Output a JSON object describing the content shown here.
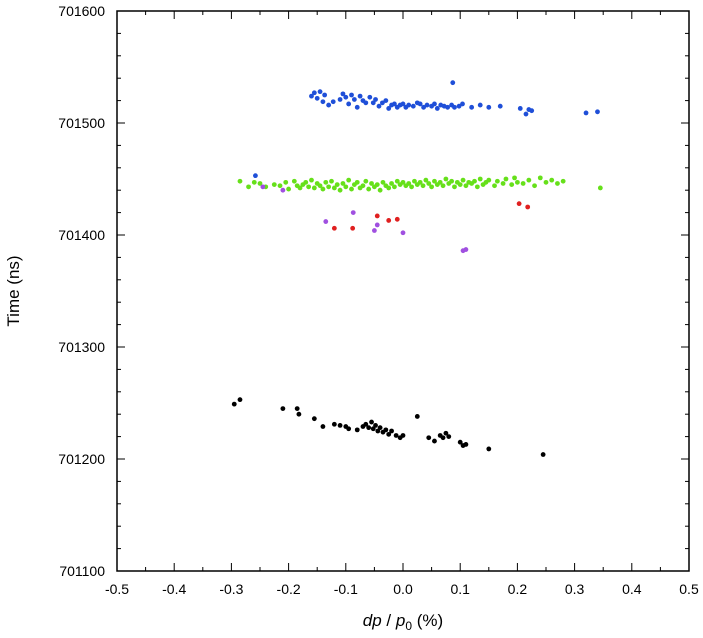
{
  "chart_data": {
    "type": "scatter",
    "xlabel": {
      "dp": "dp",
      "sep": " / ",
      "p": "p",
      "sub": "0",
      "unit": " (%)"
    },
    "ylabel": "Time (ns)",
    "xlim": [
      -0.5,
      0.5
    ],
    "ylim": [
      701100,
      701600
    ],
    "x_ticks": [
      -0.5,
      -0.4,
      -0.3,
      -0.2,
      -0.1,
      0.0,
      0.1,
      0.2,
      0.3,
      0.4,
      0.5
    ],
    "x_tick_labels": [
      "-0.5",
      "-0.4",
      "-0.3",
      "-0.2",
      "-0.1",
      "0.0",
      "0.1",
      "0.2",
      "0.3",
      "0.4",
      "0.5"
    ],
    "y_ticks": [
      701100,
      701200,
      701300,
      701400,
      701500,
      701600
    ],
    "y_tick_labels": [
      "701100",
      "701200",
      "701300",
      "701400",
      "701500",
      "701600"
    ],
    "grid": false,
    "series": [
      {
        "color": "#1f4fd8",
        "points": [
          [
            -0.16,
            701524
          ],
          [
            -0.155,
            701527
          ],
          [
            -0.15,
            701522
          ],
          [
            -0.145,
            701528
          ],
          [
            -0.14,
            701519
          ],
          [
            -0.137,
            701525
          ],
          [
            -0.13,
            701516
          ],
          [
            -0.122,
            701519
          ],
          [
            -0.11,
            701521
          ],
          [
            -0.105,
            701526
          ],
          [
            -0.1,
            701523
          ],
          [
            -0.095,
            701517
          ],
          [
            -0.09,
            701525
          ],
          [
            -0.085,
            701521
          ],
          [
            -0.08,
            701514
          ],
          [
            -0.075,
            701524
          ],
          [
            -0.07,
            701520
          ],
          [
            -0.065,
            701518
          ],
          [
            -0.058,
            701523
          ],
          [
            -0.052,
            701518
          ],
          [
            -0.048,
            701521
          ],
          [
            -0.042,
            701515
          ],
          [
            -0.036,
            701518
          ],
          [
            -0.03,
            701520
          ],
          [
            -0.025,
            701513
          ],
          [
            -0.02,
            701516
          ],
          [
            -0.015,
            701517
          ],
          [
            -0.01,
            701514
          ],
          [
            -0.005,
            701516
          ],
          [
            0.0,
            701517
          ],
          [
            0.005,
            701514
          ],
          [
            0.01,
            701516
          ],
          [
            0.018,
            701515
          ],
          [
            0.025,
            701518
          ],
          [
            0.03,
            701517
          ],
          [
            0.036,
            701514
          ],
          [
            0.042,
            701516
          ],
          [
            0.05,
            701515
          ],
          [
            0.055,
            701517
          ],
          [
            0.06,
            701513
          ],
          [
            0.066,
            701516
          ],
          [
            0.072,
            701515
          ],
          [
            0.078,
            701514
          ],
          [
            0.085,
            701516
          ],
          [
            0.09,
            701514
          ],
          [
            0.098,
            701515
          ],
          [
            0.104,
            701517
          ],
          [
            0.12,
            701514
          ],
          [
            0.135,
            701516
          ],
          [
            0.15,
            701514
          ],
          [
            0.17,
            701515
          ],
          [
            0.205,
            701513
          ],
          [
            0.22,
            701512
          ],
          [
            0.225,
            701511
          ],
          [
            0.215,
            701508
          ],
          [
            0.32,
            701509
          ],
          [
            0.34,
            701510
          ],
          [
            0.087,
            701536
          ],
          [
            -0.258,
            701453
          ]
        ]
      },
      {
        "color": "#66e01a",
        "points": [
          [
            -0.285,
            701448
          ],
          [
            -0.27,
            701443
          ],
          [
            -0.26,
            701447
          ],
          [
            -0.25,
            701446
          ],
          [
            -0.24,
            701443
          ],
          [
            -0.225,
            701445
          ],
          [
            -0.215,
            701444
          ],
          [
            -0.205,
            701447
          ],
          [
            -0.2,
            701441
          ],
          [
            -0.19,
            701448
          ],
          [
            -0.185,
            701444
          ],
          [
            -0.18,
            701442
          ],
          [
            -0.175,
            701445
          ],
          [
            -0.17,
            701447
          ],
          [
            -0.165,
            701443
          ],
          [
            -0.16,
            701449
          ],
          [
            -0.155,
            701442
          ],
          [
            -0.15,
            701446
          ],
          [
            -0.145,
            701444
          ],
          [
            -0.14,
            701441
          ],
          [
            -0.135,
            701447
          ],
          [
            -0.13,
            701443
          ],
          [
            -0.125,
            701448
          ],
          [
            -0.12,
            701442
          ],
          [
            -0.115,
            701445
          ],
          [
            -0.11,
            701440
          ],
          [
            -0.105,
            701446
          ],
          [
            -0.1,
            701443
          ],
          [
            -0.095,
            701449
          ],
          [
            -0.09,
            701441
          ],
          [
            -0.085,
            701445
          ],
          [
            -0.08,
            701447
          ],
          [
            -0.075,
            701442
          ],
          [
            -0.07,
            701444
          ],
          [
            -0.065,
            701448
          ],
          [
            -0.06,
            701441
          ],
          [
            -0.055,
            701446
          ],
          [
            -0.05,
            701443
          ],
          [
            -0.045,
            701445
          ],
          [
            -0.04,
            701440
          ],
          [
            -0.035,
            701447
          ],
          [
            -0.03,
            701444
          ],
          [
            -0.025,
            701442
          ],
          [
            -0.02,
            701446
          ],
          [
            -0.015,
            701443
          ],
          [
            -0.01,
            701448
          ],
          [
            -0.005,
            701445
          ],
          [
            0.0,
            701447
          ],
          [
            0.005,
            701444
          ],
          [
            0.01,
            701446
          ],
          [
            0.015,
            701443
          ],
          [
            0.02,
            701448
          ],
          [
            0.025,
            701445
          ],
          [
            0.03,
            701447
          ],
          [
            0.035,
            701444
          ],
          [
            0.04,
            701449
          ],
          [
            0.045,
            701446
          ],
          [
            0.05,
            701443
          ],
          [
            0.055,
            701448
          ],
          [
            0.06,
            701445
          ],
          [
            0.065,
            701447
          ],
          [
            0.07,
            701444
          ],
          [
            0.075,
            701450
          ],
          [
            0.08,
            701446
          ],
          [
            0.085,
            701448
          ],
          [
            0.09,
            701443
          ],
          [
            0.095,
            701447
          ],
          [
            0.1,
            701445
          ],
          [
            0.105,
            701449
          ],
          [
            0.11,
            701444
          ],
          [
            0.115,
            701447
          ],
          [
            0.12,
            701446
          ],
          [
            0.125,
            701448
          ],
          [
            0.13,
            701443
          ],
          [
            0.135,
            701450
          ],
          [
            0.14,
            701445
          ],
          [
            0.145,
            701447
          ],
          [
            0.15,
            701449
          ],
          [
            0.16,
            701444
          ],
          [
            0.165,
            701448
          ],
          [
            0.175,
            701446
          ],
          [
            0.18,
            701450
          ],
          [
            0.19,
            701445
          ],
          [
            0.195,
            701451
          ],
          [
            0.2,
            701447
          ],
          [
            0.21,
            701446
          ],
          [
            0.22,
            701449
          ],
          [
            0.23,
            701444
          ],
          [
            0.24,
            701451
          ],
          [
            0.25,
            701447
          ],
          [
            0.26,
            701449
          ],
          [
            0.27,
            701446
          ],
          [
            0.28,
            701448
          ],
          [
            0.345,
            701442
          ]
        ]
      },
      {
        "color": "#e02020",
        "points": [
          [
            -0.12,
            701406
          ],
          [
            -0.088,
            701406
          ],
          [
            -0.045,
            701417
          ],
          [
            -0.025,
            701413
          ],
          [
            -0.01,
            701414
          ],
          [
            0.203,
            701428
          ],
          [
            0.218,
            701425
          ]
        ]
      },
      {
        "color": "#a050e0",
        "points": [
          [
            -0.135,
            701412
          ],
          [
            -0.087,
            701420
          ],
          [
            -0.05,
            701404
          ],
          [
            -0.045,
            701409
          ],
          [
            0.0,
            701402
          ],
          [
            0.105,
            701386
          ],
          [
            0.11,
            701387
          ],
          [
            -0.245,
            701443
          ],
          [
            -0.21,
            701440
          ]
        ]
      },
      {
        "color": "#000000",
        "points": [
          [
            -0.295,
            701249
          ],
          [
            -0.285,
            701253
          ],
          [
            -0.21,
            701245
          ],
          [
            -0.185,
            701245
          ],
          [
            -0.182,
            701240
          ],
          [
            -0.155,
            701236
          ],
          [
            -0.14,
            701229
          ],
          [
            -0.12,
            701231
          ],
          [
            -0.11,
            701230
          ],
          [
            -0.1,
            701229
          ],
          [
            -0.095,
            701227
          ],
          [
            -0.08,
            701226
          ],
          [
            -0.07,
            701229
          ],
          [
            -0.065,
            701231
          ],
          [
            -0.06,
            701228
          ],
          [
            -0.055,
            701233
          ],
          [
            -0.052,
            701227
          ],
          [
            -0.048,
            701230
          ],
          [
            -0.044,
            701225
          ],
          [
            -0.04,
            701228
          ],
          [
            -0.035,
            701224
          ],
          [
            -0.03,
            701226
          ],
          [
            -0.025,
            701222
          ],
          [
            -0.02,
            701225
          ],
          [
            -0.012,
            701221
          ],
          [
            -0.005,
            701219
          ],
          [
            0.0,
            701221
          ],
          [
            0.025,
            701238
          ],
          [
            0.045,
            701219
          ],
          [
            0.055,
            701216
          ],
          [
            0.065,
            701221
          ],
          [
            0.07,
            701219
          ],
          [
            0.075,
            701223
          ],
          [
            0.08,
            701220
          ],
          [
            0.1,
            701215
          ],
          [
            0.105,
            701212
          ],
          [
            0.11,
            701213
          ],
          [
            0.15,
            701209
          ],
          [
            0.245,
            701204
          ]
        ]
      }
    ]
  }
}
